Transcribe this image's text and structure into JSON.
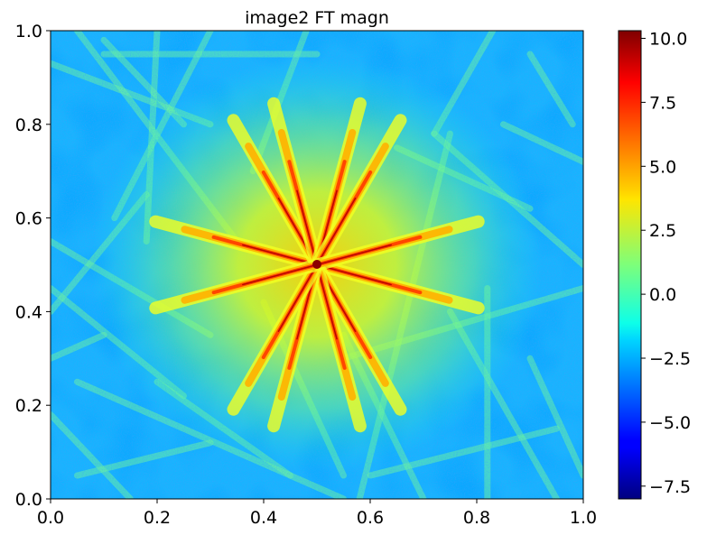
{
  "chart_data": {
    "type": "heatmap",
    "title": "image2 FT magn",
    "xlabel": "",
    "ylabel": "",
    "xlim": [
      0,
      1
    ],
    "ylim": [
      0,
      1
    ],
    "x_ticks": [
      "0.0",
      "0.2",
      "0.4",
      "0.6",
      "0.8",
      "1.0"
    ],
    "y_ticks": [
      "0.0",
      "0.2",
      "0.4",
      "0.6",
      "0.8",
      "1.0"
    ],
    "colorbar": {
      "colormap": "jet",
      "vmin": -8.0,
      "vmax": 10.3,
      "ticks": [
        "−7.5",
        "−5.0",
        "−2.5",
        "0.0",
        "2.5",
        "5.0",
        "7.5",
        "10.0"
      ],
      "tick_values": [
        -7.5,
        -5.0,
        -2.5,
        0.0,
        2.5,
        5.0,
        7.5,
        10.0
      ]
    },
    "peak": {
      "x": 0.5,
      "y": 0.5,
      "value": 10.3
    },
    "background_level": -2.0,
    "star_rays_deg": [
      15,
      60,
      75,
      105,
      120,
      165
    ],
    "grid": false
  },
  "colors": {
    "axis": "#000000",
    "background": "#ffffff"
  }
}
